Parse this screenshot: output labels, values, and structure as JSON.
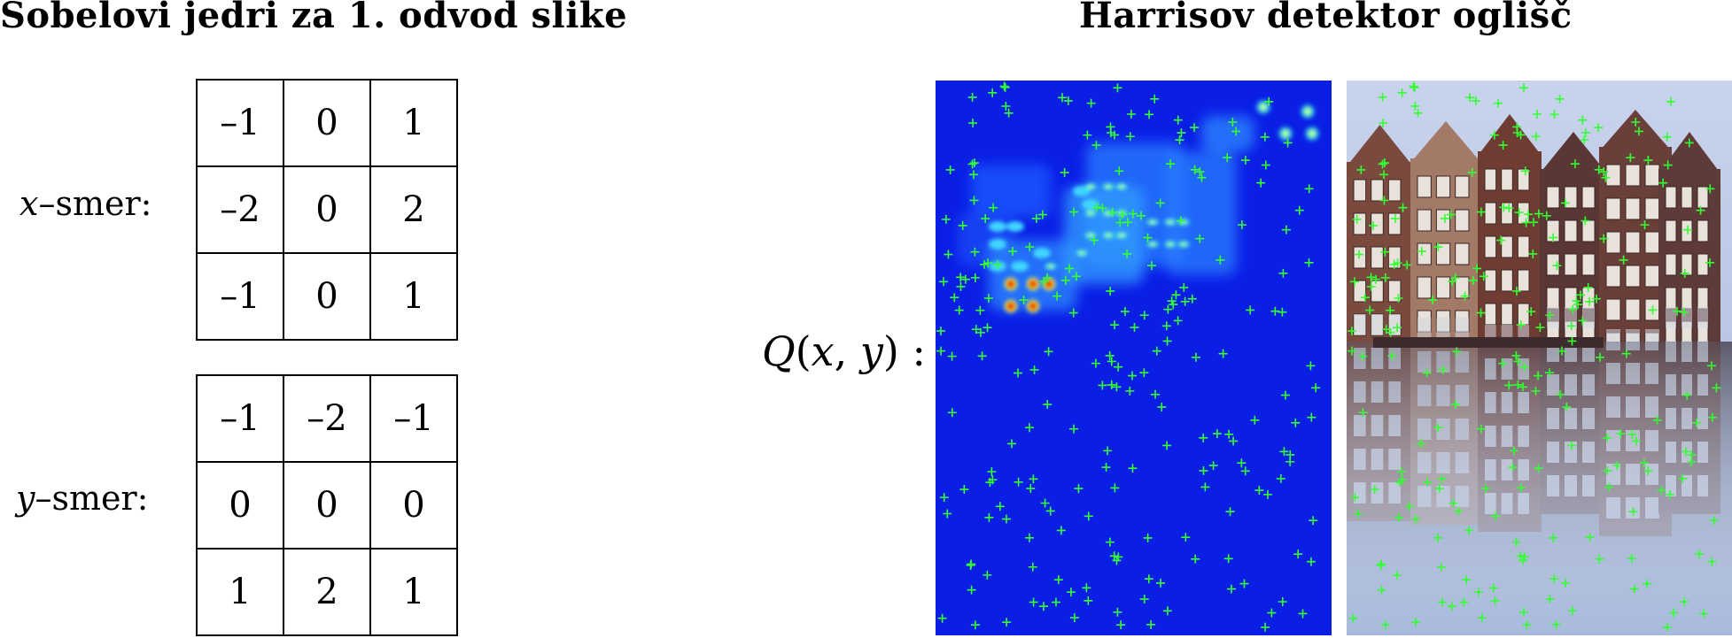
{
  "left_title": "Sobelovi jedri za 1. odvod slike",
  "right_title": "Harrisov detektor oglišč",
  "kernel_x": {
    "label_var": "x",
    "label_rest": "–smer:",
    "rows": [
      [
        "–1",
        "0",
        "1"
      ],
      [
        "–2",
        "0",
        "2"
      ],
      [
        "–1",
        "0",
        "1"
      ]
    ]
  },
  "kernel_y": {
    "label_var": "y",
    "label_rest": "–smer:",
    "rows": [
      [
        "–1",
        "–2",
        "–1"
      ],
      [
        "0",
        "0",
        "0"
      ],
      [
        "1",
        "2",
        "1"
      ]
    ]
  },
  "response_label": {
    "q": "Q",
    "open": "(",
    "x": "x",
    "comma": ", ",
    "y": "y",
    "close": ") :"
  },
  "colors": {
    "heatmap_base": "#0a1ee6",
    "corner_marker": "#33ff33",
    "sky": "#b9c6e3",
    "water": "#8a9bbf"
  }
}
